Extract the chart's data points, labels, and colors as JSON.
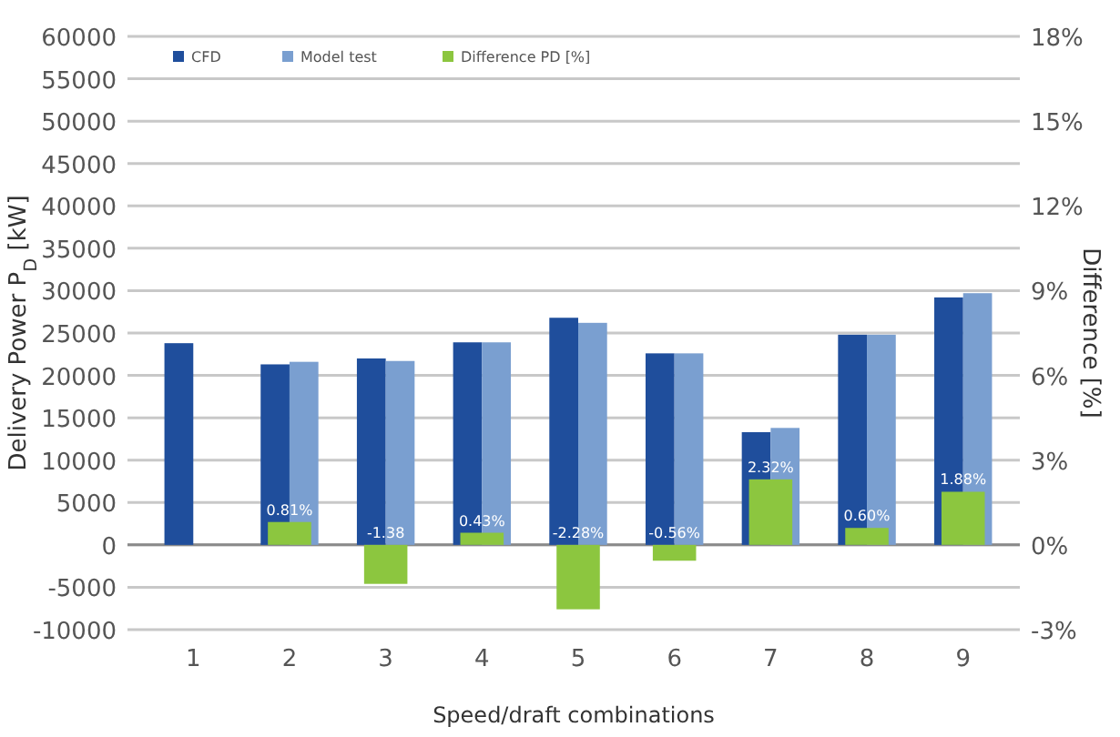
{
  "chart_data": {
    "type": "bar",
    "xlabel": "Speed/draft combinations",
    "ylabel": "Delivery Power P$_{D}$ [kW]",
    "y2label": "Difference [%]",
    "categories": [
      "1",
      "2",
      "3",
      "4",
      "5",
      "6",
      "7",
      "8",
      "9"
    ],
    "series": [
      {
        "name": "CFD",
        "color": "#1f4e9c",
        "values": [
          23800,
          21300,
          22000,
          23900,
          26800,
          22600,
          13300,
          24800,
          29200
        ]
      },
      {
        "name": "Model test",
        "color": "#7a9fd0",
        "values": [
          null,
          21600,
          21700,
          23900,
          26200,
          22600,
          13800,
          24800,
          29700
        ]
      },
      {
        "name": "Difference PD [%]",
        "color": "#8cc63f",
        "axis": "y2",
        "values": [
          null,
          0.81,
          -1.38,
          0.43,
          -2.28,
          -0.56,
          2.32,
          0.6,
          1.88
        ],
        "value_labels": [
          null,
          "0.81%",
          "-1.38",
          "0.43%",
          "-2.28%",
          "-0.56%",
          "2.32%",
          "0.60%",
          "1.88%"
        ]
      }
    ],
    "ylim": [
      -10000,
      60000
    ],
    "yticks": [
      -10000,
      -5000,
      0,
      5000,
      10000,
      15000,
      20000,
      25000,
      30000,
      35000,
      40000,
      45000,
      50000,
      55000,
      60000
    ],
    "y2lim": [
      -3,
      18
    ],
    "y2ticks": [
      {
        "value": -3,
        "label": "-3%"
      },
      {
        "value": 0,
        "label": "0%"
      },
      {
        "value": 3,
        "label": "3%"
      },
      {
        "value": 6,
        "label": "6%"
      },
      {
        "value": 9,
        "label": "9%"
      },
      {
        "value": 12,
        "label": "12%"
      },
      {
        "value": 15,
        "label": "15%"
      },
      {
        "value": 18,
        "label": "18%"
      }
    ],
    "grid": "y",
    "legend": "top left"
  }
}
